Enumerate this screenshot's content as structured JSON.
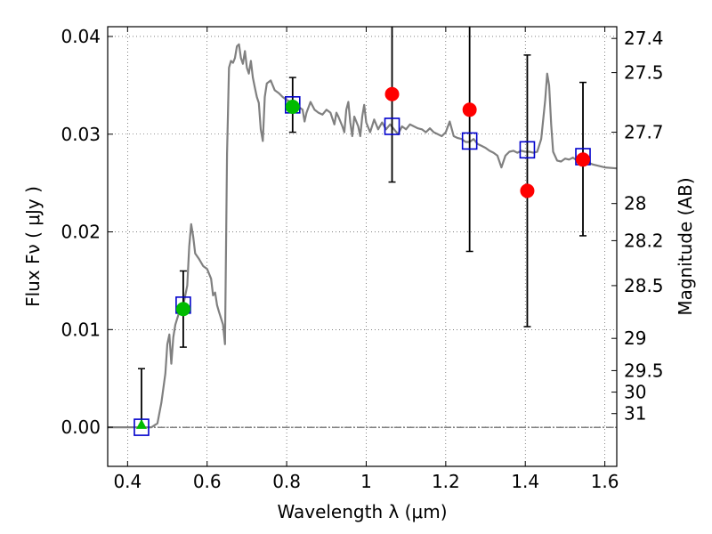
{
  "chart_data": {
    "type": "scatter",
    "xlabel": "Wavelength  λ (μm)",
    "ylabel": "Flux  Fν ( μJy )",
    "y2label": "Magnitude (AB)",
    "xlim": [
      0.35,
      1.63
    ],
    "ylim": [
      -0.004,
      0.041
    ],
    "grid": true,
    "x_ticks": [
      0.4,
      0.6,
      0.8,
      1.0,
      1.2,
      1.4,
      1.6
    ],
    "x_tick_labels": [
      "0.4",
      "0.6",
      "0.8",
      "1",
      "1.2",
      "1.4",
      "1.6"
    ],
    "y_ticks": [
      0.0,
      0.01,
      0.02,
      0.03,
      0.04
    ],
    "y_tick_labels": [
      "0.00",
      "0.01",
      "0.02",
      "0.03",
      "0.04"
    ],
    "mag_ticks": [
      {
        "label": "27.4",
        "flux": 0.0398
      },
      {
        "label": "27.5",
        "flux": 0.0363
      },
      {
        "label": "27.7",
        "flux": 0.0302
      },
      {
        "label": "28",
        "flux": 0.0229
      },
      {
        "label": "28.2",
        "flux": 0.0191
      },
      {
        "label": "28.5",
        "flux": 0.0145
      },
      {
        "label": "29",
        "flux": 0.0091
      },
      {
        "label": "29.5",
        "flux": 0.0058
      },
      {
        "label": "30",
        "flux": 0.0036
      },
      {
        "label": "31",
        "flux": 0.0014
      }
    ],
    "model_sed": {
      "color": "#808080",
      "points": [
        [
          0.35,
          0.0
        ],
        [
          0.46,
          0.0
        ],
        [
          0.475,
          0.0004
        ],
        [
          0.485,
          0.0025
        ],
        [
          0.495,
          0.0055
        ],
        [
          0.5,
          0.0085
        ],
        [
          0.505,
          0.0095
        ],
        [
          0.51,
          0.0065
        ],
        [
          0.515,
          0.0092
        ],
        [
          0.52,
          0.0105
        ],
        [
          0.53,
          0.0118
        ],
        [
          0.54,
          0.0125
        ],
        [
          0.55,
          0.0145
        ],
        [
          0.555,
          0.0185
        ],
        [
          0.56,
          0.0208
        ],
        [
          0.565,
          0.0195
        ],
        [
          0.57,
          0.0178
        ],
        [
          0.58,
          0.0172
        ],
        [
          0.59,
          0.0165
        ],
        [
          0.6,
          0.0162
        ],
        [
          0.61,
          0.0152
        ],
        [
          0.615,
          0.0135
        ],
        [
          0.62,
          0.0138
        ],
        [
          0.625,
          0.0125
        ],
        [
          0.63,
          0.0118
        ],
        [
          0.64,
          0.0105
        ],
        [
          0.645,
          0.0085
        ],
        [
          0.65,
          0.028
        ],
        [
          0.655,
          0.0368
        ],
        [
          0.66,
          0.0375
        ],
        [
          0.665,
          0.0373
        ],
        [
          0.67,
          0.0378
        ],
        [
          0.675,
          0.039
        ],
        [
          0.68,
          0.0392
        ],
        [
          0.685,
          0.0378
        ],
        [
          0.69,
          0.0372
        ],
        [
          0.695,
          0.0385
        ],
        [
          0.7,
          0.0368
        ],
        [
          0.705,
          0.0362
        ],
        [
          0.71,
          0.0375
        ],
        [
          0.715,
          0.0358
        ],
        [
          0.72,
          0.0348
        ],
        [
          0.725,
          0.0338
        ],
        [
          0.73,
          0.0332
        ],
        [
          0.735,
          0.0305
        ],
        [
          0.74,
          0.0293
        ],
        [
          0.745,
          0.0338
        ],
        [
          0.75,
          0.0352
        ],
        [
          0.76,
          0.0355
        ],
        [
          0.77,
          0.0345
        ],
        [
          0.78,
          0.0342
        ],
        [
          0.79,
          0.0338
        ],
        [
          0.8,
          0.0335
        ],
        [
          0.81,
          0.0333
        ],
        [
          0.82,
          0.033
        ],
        [
          0.83,
          0.0328
        ],
        [
          0.84,
          0.0325
        ],
        [
          0.845,
          0.0313
        ],
        [
          0.85,
          0.0322
        ],
        [
          0.86,
          0.0333
        ],
        [
          0.87,
          0.0325
        ],
        [
          0.88,
          0.0322
        ],
        [
          0.89,
          0.032
        ],
        [
          0.9,
          0.0325
        ],
        [
          0.91,
          0.0322
        ],
        [
          0.92,
          0.031
        ],
        [
          0.925,
          0.0322
        ],
        [
          0.93,
          0.0318
        ],
        [
          0.94,
          0.0308
        ],
        [
          0.945,
          0.0302
        ],
        [
          0.95,
          0.0325
        ],
        [
          0.955,
          0.0333
        ],
        [
          0.96,
          0.0312
        ],
        [
          0.965,
          0.0298
        ],
        [
          0.97,
          0.0318
        ],
        [
          0.98,
          0.0308
        ],
        [
          0.985,
          0.0298
        ],
        [
          0.99,
          0.0318
        ],
        [
          0.995,
          0.033
        ],
        [
          1.0,
          0.0312
        ],
        [
          1.01,
          0.0302
        ],
        [
          1.02,
          0.0315
        ],
        [
          1.03,
          0.0305
        ],
        [
          1.04,
          0.0312
        ],
        [
          1.05,
          0.0305
        ],
        [
          1.06,
          0.031
        ],
        [
          1.07,
          0.0305
        ],
        [
          1.08,
          0.03
        ],
        [
          1.09,
          0.0308
        ],
        [
          1.1,
          0.0305
        ],
        [
          1.11,
          0.031
        ],
        [
          1.12,
          0.0308
        ],
        [
          1.13,
          0.0306
        ],
        [
          1.14,
          0.0305
        ],
        [
          1.15,
          0.0302
        ],
        [
          1.16,
          0.0306
        ],
        [
          1.17,
          0.0302
        ],
        [
          1.18,
          0.03
        ],
        [
          1.19,
          0.0298
        ],
        [
          1.2,
          0.0302
        ],
        [
          1.21,
          0.0313
        ],
        [
          1.22,
          0.0298
        ],
        [
          1.23,
          0.0296
        ],
        [
          1.24,
          0.0295
        ],
        [
          1.25,
          0.0292
        ],
        [
          1.26,
          0.0292
        ],
        [
          1.27,
          0.0295
        ],
        [
          1.28,
          0.029
        ],
        [
          1.29,
          0.0288
        ],
        [
          1.3,
          0.0286
        ],
        [
          1.31,
          0.0283
        ],
        [
          1.32,
          0.0281
        ],
        [
          1.33,
          0.0278
        ],
        [
          1.34,
          0.0266
        ],
        [
          1.35,
          0.0278
        ],
        [
          1.36,
          0.0282
        ],
        [
          1.37,
          0.0283
        ],
        [
          1.38,
          0.0281
        ],
        [
          1.39,
          0.0283
        ],
        [
          1.4,
          0.0282
        ],
        [
          1.41,
          0.0282
        ],
        [
          1.42,
          0.0281
        ],
        [
          1.43,
          0.0282
        ],
        [
          1.44,
          0.0295
        ],
        [
          1.45,
          0.0335
        ],
        [
          1.455,
          0.0362
        ],
        [
          1.46,
          0.035
        ],
        [
          1.465,
          0.031
        ],
        [
          1.47,
          0.0282
        ],
        [
          1.48,
          0.0273
        ],
        [
          1.49,
          0.0272
        ],
        [
          1.5,
          0.0275
        ],
        [
          1.51,
          0.0274
        ],
        [
          1.52,
          0.0276
        ],
        [
          1.53,
          0.0273
        ],
        [
          1.54,
          0.0272
        ],
        [
          1.55,
          0.0272
        ],
        [
          1.57,
          0.0269
        ],
        [
          1.6,
          0.0266
        ],
        [
          1.63,
          0.0265
        ]
      ]
    },
    "model_points": {
      "marker": "open-square",
      "color": "#0000cc",
      "points": [
        [
          0.435,
          0.0
        ],
        [
          0.54,
          0.0125
        ],
        [
          0.815,
          0.033
        ],
        [
          1.065,
          0.0308
        ],
        [
          1.26,
          0.0293
        ],
        [
          1.405,
          0.0284
        ],
        [
          1.545,
          0.0277
        ]
      ]
    },
    "detections": {
      "marker": "filled-circle",
      "color": "#00bb00",
      "points": [
        [
          0.54,
          0.0121
        ],
        [
          0.815,
          0.0328
        ]
      ]
    },
    "nondetections": {
      "marker": "filled-circle",
      "color": "#ff0000",
      "points": [
        [
          1.065,
          0.0341
        ],
        [
          1.26,
          0.0325
        ],
        [
          1.405,
          0.0242
        ],
        [
          1.545,
          0.0274
        ]
      ]
    },
    "upper_limit": {
      "marker": "triangle",
      "color": "#00bb00",
      "points": [
        [
          0.435,
          0.0002
        ]
      ]
    },
    "error_bars": [
      {
        "x": 0.435,
        "low": 0.0,
        "high": 0.006
      },
      {
        "x": 0.54,
        "low": 0.0082,
        "high": 0.016
      },
      {
        "x": 0.815,
        "low": 0.0302,
        "high": 0.0358
      },
      {
        "x": 1.065,
        "low": 0.0251,
        "high": 0.041
      },
      {
        "x": 1.26,
        "low": 0.018,
        "high": 0.041
      },
      {
        "x": 1.405,
        "low": 0.0103,
        "high": 0.0381
      },
      {
        "x": 1.545,
        "low": 0.0196,
        "high": 0.0353
      }
    ]
  }
}
